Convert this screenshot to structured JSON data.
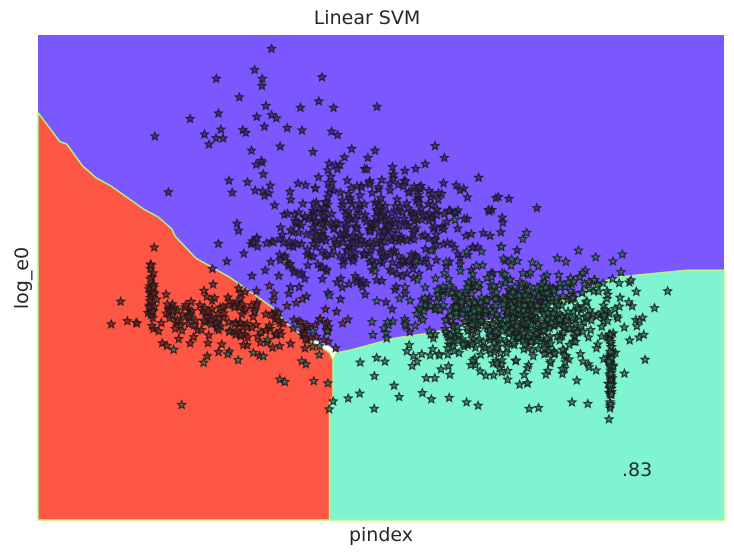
{
  "chart_data": {
    "type": "scatter",
    "title": "Linear SVM",
    "xlabel": "pindex",
    "ylabel": "log_e0",
    "annotation": ".83",
    "xlim": [
      0,
      1
    ],
    "ylim": [
      0,
      1
    ],
    "grid": false,
    "ticks_shown": false,
    "region_colors": {
      "upper": "#7b57fe",
      "left": "#fd5645",
      "lower_right": "#7ef4d0",
      "boundary": "#b5f77a"
    },
    "marker": "star",
    "marker_edge": "#1a1a1a",
    "point_fill_colors": [
      "#3a2478",
      "#7a1f1f",
      "#2a6e55"
    ],
    "decision_regions": {
      "upper": [
        [
          0,
          1
        ],
        [
          1,
          1
        ],
        [
          1,
          0.515
        ],
        [
          0.945,
          0.515
        ],
        [
          0.91,
          0.51
        ],
        [
          0.84,
          0.5
        ],
        [
          0.8,
          0.475
        ],
        [
          0.78,
          0.455
        ],
        [
          0.75,
          0.45
        ],
        [
          0.69,
          0.42
        ],
        [
          0.62,
          0.4
        ],
        [
          0.57,
          0.385
        ],
        [
          0.52,
          0.375
        ],
        [
          0.455,
          0.35
        ],
        [
          0.435,
          0.345
        ],
        [
          0.43,
          0.355
        ],
        [
          0.405,
          0.37
        ],
        [
          0.39,
          0.375
        ],
        [
          0.37,
          0.395
        ],
        [
          0.34,
          0.44
        ],
        [
          0.28,
          0.5
        ],
        [
          0.23,
          0.54
        ],
        [
          0.2,
          0.585
        ],
        [
          0.195,
          0.6
        ],
        [
          0.175,
          0.625
        ],
        [
          0.155,
          0.64
        ],
        [
          0.13,
          0.665
        ],
        [
          0.105,
          0.69
        ],
        [
          0.085,
          0.705
        ],
        [
          0.065,
          0.73
        ],
        [
          0.042,
          0.775
        ],
        [
          0.032,
          0.78
        ],
        [
          0,
          0.84
        ]
      ],
      "left": [
        [
          0,
          0.84
        ],
        [
          0.032,
          0.78
        ],
        [
          0.042,
          0.775
        ],
        [
          0.065,
          0.73
        ],
        [
          0.085,
          0.705
        ],
        [
          0.105,
          0.69
        ],
        [
          0.13,
          0.665
        ],
        [
          0.155,
          0.64
        ],
        [
          0.175,
          0.625
        ],
        [
          0.195,
          0.6
        ],
        [
          0.2,
          0.585
        ],
        [
          0.23,
          0.54
        ],
        [
          0.28,
          0.5
        ],
        [
          0.34,
          0.44
        ],
        [
          0.37,
          0.395
        ],
        [
          0.425,
          0.345
        ],
        [
          0.43,
          0.33
        ],
        [
          0.43,
          0.255
        ],
        [
          0.425,
          0.24
        ],
        [
          0.425,
          0
        ],
        [
          0,
          0
        ]
      ],
      "lower_right": [
        [
          0.425,
          0
        ],
        [
          1,
          0
        ],
        [
          1,
          0.515
        ],
        [
          0.945,
          0.515
        ],
        [
          0.91,
          0.51
        ],
        [
          0.84,
          0.5
        ],
        [
          0.8,
          0.475
        ],
        [
          0.78,
          0.455
        ],
        [
          0.75,
          0.45
        ],
        [
          0.69,
          0.42
        ],
        [
          0.62,
          0.4
        ],
        [
          0.57,
          0.385
        ],
        [
          0.52,
          0.375
        ],
        [
          0.455,
          0.35
        ],
        [
          0.435,
          0.345
        ],
        [
          0.43,
          0.33
        ],
        [
          0.43,
          0.255
        ],
        [
          0.425,
          0.24
        ]
      ]
    },
    "clusters": [
      {
        "name": "",
        "n": 30,
        "x_mean": 0.165,
        "x_sd": 0.002,
        "y_mean": 0.47,
        "y_sd": 0.04,
        "color": 1,
        "seed": 1
      },
      {
        "name": "",
        "n": 150,
        "x_mean": 0.26,
        "x_sd": 0.06,
        "y_mean": 0.415,
        "y_sd": 0.028,
        "color": 1,
        "seed": 2
      },
      {
        "name": "",
        "n": 45,
        "x_mean": 0.38,
        "x_sd": 0.04,
        "y_mean": 0.385,
        "y_sd": 0.025,
        "color": 1,
        "seed": 3
      },
      {
        "name": "",
        "n": 40,
        "x_mean": 0.33,
        "x_sd": 0.07,
        "y_mean": 0.82,
        "y_sd": 0.055,
        "color": 0,
        "seed": 4
      },
      {
        "name": "",
        "n": 500,
        "x_mean": 0.49,
        "x_sd": 0.085,
        "y_mean": 0.6,
        "y_sd": 0.07,
        "color": 0,
        "seed": 5
      },
      {
        "name": "",
        "n": 700,
        "x_mean": 0.7,
        "x_sd": 0.08,
        "y_mean": 0.42,
        "y_sd": 0.055,
        "color": 2,
        "seed": 6
      },
      {
        "name": "",
        "n": 50,
        "x_mean": 0.835,
        "x_sd": 0.002,
        "y_mean": 0.3,
        "y_sd": 0.05,
        "color": 2,
        "seed": 7
      },
      {
        "name": "",
        "n": 45,
        "x_mean": 0.52,
        "x_sd": 0.15,
        "y_mean": 0.31,
        "y_sd": 0.045,
        "color": 2,
        "seed": 8
      }
    ]
  }
}
